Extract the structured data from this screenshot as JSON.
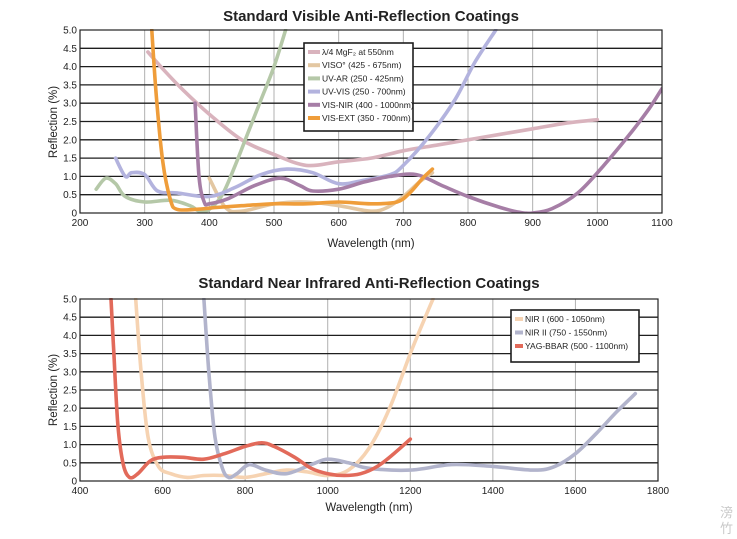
{
  "watermark": [
    "滂",
    "竹"
  ],
  "chart_data": [
    {
      "type": "line",
      "title": "Standard Visible Anti-Reflection Coatings",
      "xlabel": "Wavelength (nm)",
      "ylabel": "Reflection (%)",
      "xlim": [
        200,
        1100
      ],
      "ylim": [
        0,
        5.0
      ],
      "xticks": [
        "200",
        "300",
        "400",
        "500",
        "600",
        "700",
        "800",
        "900",
        "1000",
        "1100"
      ],
      "yticks": [
        "0",
        "0.5",
        "1.0",
        "1.5",
        "2.0",
        "2.5",
        "3.0",
        "3.5",
        "4.0",
        "4.5",
        "5.0"
      ],
      "grid": true,
      "legend_position": "top-center",
      "series": [
        {
          "name": "λ/4 MgF₂ at 550nm",
          "color": "#d9b3bd",
          "points": [
            [
              305,
              4.4
            ],
            [
              330,
              3.9
            ],
            [
              360,
              3.35
            ],
            [
              400,
              2.7
            ],
            [
              450,
              2.0
            ],
            [
              500,
              1.6
            ],
            [
              550,
              1.3
            ],
            [
              600,
              1.4
            ],
            [
              650,
              1.5
            ],
            [
              700,
              1.7
            ],
            [
              750,
              1.85
            ],
            [
              800,
              2.0
            ],
            [
              850,
              2.15
            ],
            [
              900,
              2.3
            ],
            [
              950,
              2.45
            ],
            [
              1000,
              2.55
            ]
          ]
        },
        {
          "name": "VISO° (425 - 675nm)",
          "color": "#e3c7a2",
          "points": [
            [
              400,
              0.95
            ],
            [
              425,
              0.15
            ],
            [
              450,
              0.05
            ],
            [
              500,
              0.25
            ],
            [
              550,
              0.3
            ],
            [
              600,
              0.2
            ],
            [
              650,
              0.05
            ],
            [
              675,
              0.15
            ],
            [
              700,
              0.45
            ],
            [
              725,
              0.85
            ],
            [
              745,
              1.1
            ]
          ]
        },
        {
          "name": "UV-AR (250 - 425nm)",
          "color": "#b5c8a8",
          "points": [
            [
              225,
              0.65
            ],
            [
              240,
              0.95
            ],
            [
              255,
              0.8
            ],
            [
              270,
              0.45
            ],
            [
              300,
              0.3
            ],
            [
              340,
              0.35
            ],
            [
              370,
              0.2
            ],
            [
              385,
              0.05
            ],
            [
              400,
              0.1
            ],
            [
              420,
              0.5
            ],
            [
              440,
              1.3
            ],
            [
              460,
              2.2
            ],
            [
              480,
              3.1
            ],
            [
              500,
              4.0
            ],
            [
              518,
              5.0
            ]
          ]
        },
        {
          "name": "UV-VIS (250 - 700nm)",
          "color": "#b3b3de",
          "points": [
            [
              255,
              1.5
            ],
            [
              270,
              1.0
            ],
            [
              280,
              1.1
            ],
            [
              300,
              1.05
            ],
            [
              320,
              0.6
            ],
            [
              350,
              0.55
            ],
            [
              400,
              0.45
            ],
            [
              440,
              0.7
            ],
            [
              480,
              1.05
            ],
            [
              520,
              1.2
            ],
            [
              560,
              1.1
            ],
            [
              600,
              0.8
            ],
            [
              640,
              0.9
            ],
            [
              680,
              1.05
            ],
            [
              700,
              1.3
            ],
            [
              740,
              2.1
            ],
            [
              780,
              3.1
            ],
            [
              810,
              4.1
            ],
            [
              843,
              5.0
            ]
          ]
        },
        {
          "name": "VIS-NIR (400 - 1000nm)",
          "color": "#a67ea6",
          "points": [
            [
              378,
              3.0
            ],
            [
              384,
              1.0
            ],
            [
              392,
              0.3
            ],
            [
              400,
              0.25
            ],
            [
              430,
              0.4
            ],
            [
              470,
              0.75
            ],
            [
              510,
              0.95
            ],
            [
              540,
              0.75
            ],
            [
              560,
              0.6
            ],
            [
              600,
              0.65
            ],
            [
              640,
              0.85
            ],
            [
              680,
              1.0
            ],
            [
              720,
              1.05
            ],
            [
              760,
              0.75
            ],
            [
              800,
              0.45
            ],
            [
              850,
              0.15
            ],
            [
              880,
              0.02
            ],
            [
              900,
              0.0
            ],
            [
              930,
              0.12
            ],
            [
              970,
              0.55
            ],
            [
              1010,
              1.3
            ],
            [
              1050,
              2.15
            ],
            [
              1080,
              2.85
            ],
            [
              1100,
              3.4
            ]
          ]
        },
        {
          "name": "VIS-EXT (350 - 700nm)",
          "color": "#ef9d3a",
          "points": [
            [
              311,
              5.0
            ],
            [
              318,
              3.2
            ],
            [
              328,
              1.4
            ],
            [
              340,
              0.35
            ],
            [
              350,
              0.1
            ],
            [
              380,
              0.1
            ],
            [
              410,
              0.15
            ],
            [
              450,
              0.2
            ],
            [
              500,
              0.25
            ],
            [
              550,
              0.25
            ],
            [
              600,
              0.3
            ],
            [
              650,
              0.25
            ],
            [
              690,
              0.3
            ],
            [
              710,
              0.55
            ],
            [
              730,
              0.95
            ],
            [
              745,
              1.2
            ]
          ]
        }
      ]
    },
    {
      "type": "line",
      "title": "Standard Near Infrared Anti-Reflection Coatings",
      "xlabel": "Wavelength (nm)",
      "ylabel": "Reflection (%)",
      "xlim": [
        400,
        1800
      ],
      "ylim": [
        0,
        5.0
      ],
      "xticks": [
        "400",
        "600",
        "800",
        "1000",
        "1200",
        "1400",
        "1600",
        "1800"
      ],
      "yticks": [
        "0",
        "0.5",
        "1.0",
        "1.5",
        "2.0",
        "2.5",
        "3.0",
        "3.5",
        "4.0",
        "4.5",
        "5.0"
      ],
      "grid": true,
      "legend_position": "top-right",
      "series": [
        {
          "name": "NIR I (600 - 1050nm)",
          "color": "#f6d3b2",
          "points": [
            [
              535,
              5.0
            ],
            [
              548,
              3.0
            ],
            [
              565,
              1.2
            ],
            [
              590,
              0.4
            ],
            [
              620,
              0.2
            ],
            [
              660,
              0.1
            ],
            [
              700,
              0.15
            ],
            [
              750,
              0.15
            ],
            [
              800,
              0.1
            ],
            [
              850,
              0.2
            ],
            [
              900,
              0.3
            ],
            [
              950,
              0.25
            ],
            [
              1000,
              0.15
            ],
            [
              1050,
              0.3
            ],
            [
              1100,
              0.9
            ],
            [
              1150,
              2.0
            ],
            [
              1200,
              3.5
            ],
            [
              1240,
              4.6
            ],
            [
              1255,
              5.0
            ]
          ]
        },
        {
          "name": "NIR II (750 - 1550nm)",
          "color": "#b2b4cc",
          "points": [
            [
              700,
              5.0
            ],
            [
              712,
              3.0
            ],
            [
              727,
              1.2
            ],
            [
              745,
              0.35
            ],
            [
              760,
              0.1
            ],
            [
              780,
              0.2
            ],
            [
              810,
              0.45
            ],
            [
              850,
              0.3
            ],
            [
              900,
              0.2
            ],
            [
              960,
              0.45
            ],
            [
              1000,
              0.6
            ],
            [
              1050,
              0.5
            ],
            [
              1100,
              0.35
            ],
            [
              1200,
              0.3
            ],
            [
              1300,
              0.45
            ],
            [
              1400,
              0.4
            ],
            [
              1500,
              0.3
            ],
            [
              1550,
              0.4
            ],
            [
              1600,
              0.75
            ],
            [
              1650,
              1.3
            ],
            [
              1700,
              1.9
            ],
            [
              1745,
              2.4
            ]
          ]
        },
        {
          "name": "YAG-BBAR (500 - 1100nm)",
          "color": "#e26a5a",
          "points": [
            [
              475,
              5.0
            ],
            [
              482,
              3.5
            ],
            [
              492,
              1.5
            ],
            [
              505,
              0.45
            ],
            [
              520,
              0.1
            ],
            [
              540,
              0.2
            ],
            [
              570,
              0.55
            ],
            [
              600,
              0.65
            ],
            [
              650,
              0.65
            ],
            [
              700,
              0.6
            ],
            [
              750,
              0.75
            ],
            [
              800,
              0.95
            ],
            [
              840,
              1.05
            ],
            [
              870,
              0.95
            ],
            [
              920,
              0.65
            ],
            [
              960,
              0.35
            ],
            [
              1000,
              0.2
            ],
            [
              1040,
              0.15
            ],
            [
              1080,
              0.2
            ],
            [
              1120,
              0.4
            ],
            [
              1160,
              0.75
            ],
            [
              1200,
              1.15
            ]
          ]
        }
      ]
    }
  ]
}
